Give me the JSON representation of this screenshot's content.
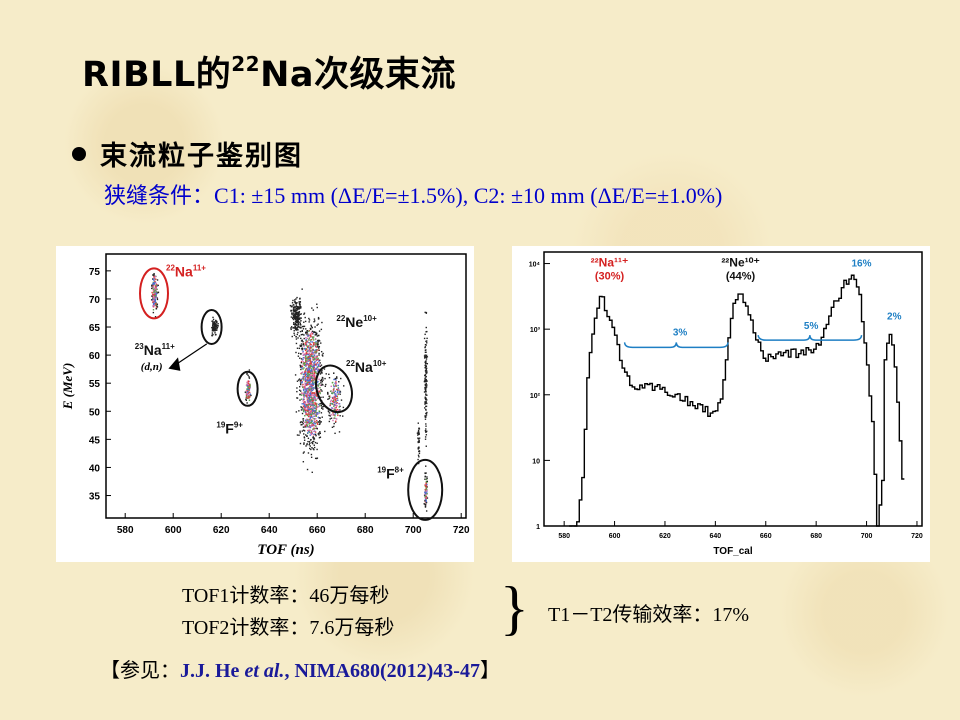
{
  "title": {
    "prefix": "RIBLL的",
    "sup": "22",
    "suffix": "Na次级束流"
  },
  "bullet": {
    "label": "束流粒子鉴别图"
  },
  "slit": {
    "label": "狭缝条件：",
    "conditions": "C1: ±15 mm (ΔE/E=±1.5%), C2: ±10 mm (ΔE/E=±1.0%)"
  },
  "rates": {
    "tof1": "TOF1计数率：46万每秒",
    "tof2": "TOF2计数率：7.6万每秒"
  },
  "brace": "}",
  "efficiency": "T1－T2传输效率：17%",
  "reference": {
    "open": "【参见：",
    "authors": "J.J. He ",
    "etal": "et al.",
    "journal": ", NIMA680(2012)43-47",
    "close": "】"
  },
  "chart_data": [
    {
      "type": "scatter",
      "xlabel": "TOF (ns)",
      "ylabel": "E (MeV)",
      "xticks": [
        "580",
        "600",
        "620",
        "640",
        "660",
        "680",
        "700",
        "720"
      ],
      "yticks": [
        "35",
        "40",
        "45",
        "50",
        "55",
        "60",
        "65",
        "70",
        "75"
      ],
      "xlim": [
        572,
        722
      ],
      "ylim": [
        31,
        78
      ],
      "clusters": [
        {
          "label_sup": "22",
          "label": "Na",
          "charge": "11+",
          "tof": 592,
          "energy": 71,
          "circled": true,
          "circle_color": "#d42020"
        },
        {
          "label_sup": "23",
          "label": "Na",
          "charge": "11+",
          "extra": "(d,n)",
          "tof": 616,
          "energy": 65,
          "circled": true,
          "circle_color": "#111111"
        },
        {
          "label_sup": "22",
          "label": "Ne",
          "charge": "10+",
          "tof": 656,
          "energy": 56,
          "circled": false
        },
        {
          "label_sup": "22",
          "label": "Na",
          "charge": "10+",
          "tof": 667,
          "energy": 54,
          "circled": true,
          "circle_color": "#111111"
        },
        {
          "label_sup": "19",
          "label": "F",
          "charge": "9+",
          "tof": 631,
          "energy": 54,
          "circled": true,
          "circle_color": "#111111"
        },
        {
          "label_sup": "19",
          "label": "F",
          "charge": "8+",
          "tof": 705,
          "energy": 36,
          "circled": true,
          "circle_color": "#111111"
        }
      ]
    },
    {
      "type": "line",
      "xlabel": "TOF_cal",
      "yscale": "log",
      "xticks": [
        "580",
        "600",
        "620",
        "640",
        "660",
        "680",
        "700",
        "720"
      ],
      "yticks": [
        "1",
        "10",
        "10²",
        "10³",
        "10⁴"
      ],
      "xlim": [
        572,
        722
      ],
      "ylim": [
        1,
        15000
      ],
      "x": [
        582,
        585,
        587,
        589,
        591,
        593,
        595,
        597,
        599,
        601,
        603,
        605,
        607,
        610,
        613,
        616,
        619,
        622,
        625,
        628,
        631,
        634,
        637,
        640,
        642,
        644,
        646,
        648,
        650,
        652,
        654,
        656,
        658,
        660,
        662,
        664,
        666,
        668,
        670,
        673,
        676,
        679,
        682,
        685,
        688,
        691,
        694,
        697,
        700,
        702,
        704,
        706,
        707,
        709,
        711,
        713,
        715
      ],
      "y": [
        1,
        1,
        5,
        200,
        1000,
        2500,
        3000,
        1800,
        1000,
        500,
        250,
        180,
        140,
        120,
        130,
        125,
        120,
        110,
        95,
        80,
        70,
        65,
        55,
        50,
        90,
        400,
        1500,
        3000,
        3500,
        2500,
        1400,
        700,
        450,
        350,
        380,
        400,
        420,
        420,
        430,
        430,
        460,
        520,
        700,
        1500,
        3000,
        5000,
        7000,
        3000,
        300,
        40,
        1,
        5,
        400,
        1000,
        300,
        20,
        1
      ],
      "annotations": [
        {
          "text": "²²Na¹¹⁺",
          "sub": "(30%)",
          "color": "#d42020"
        },
        {
          "text": "²²Ne¹⁰⁺",
          "sub": "(44%)",
          "color": "#111111"
        },
        {
          "text": "3%",
          "color": "#1e7fc4"
        },
        {
          "text": "5%",
          "color": "#1e7fc4"
        },
        {
          "text": "16%",
          "color": "#1e7fc4"
        },
        {
          "text": "2%",
          "color": "#1e7fc4"
        }
      ]
    }
  ]
}
